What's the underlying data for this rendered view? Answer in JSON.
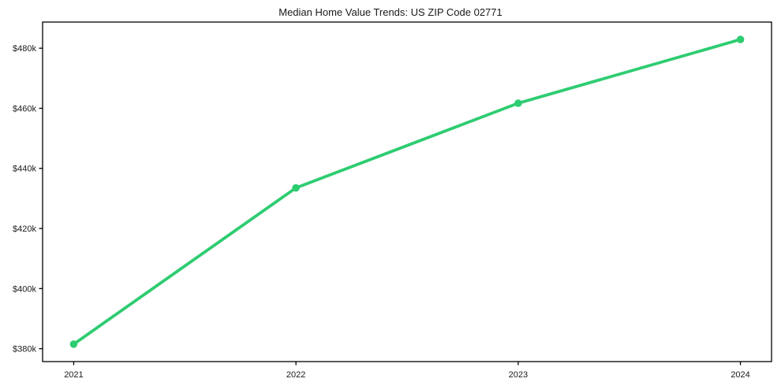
{
  "chart_data": {
    "type": "line",
    "title": "Median Home Value Trends: US ZIP Code 02771",
    "xlabel": "",
    "ylabel": "",
    "x": [
      2021,
      2022,
      2023,
      2024
    ],
    "values": [
      381.5,
      433.5,
      461.7,
      482.9
    ],
    "values_unit": "USD thousands (read from $...k tick labels)",
    "x_tick_labels": [
      "2021",
      "2022",
      "2023",
      "2024"
    ],
    "y_tick_values": [
      380,
      400,
      420,
      440,
      460,
      480
    ],
    "y_tick_labels": [
      "$380k",
      "$400k",
      "$420k",
      "$440k",
      "$460k",
      "$480k"
    ],
    "xlim": [
      2020.86,
      2024.14
    ],
    "ylim": [
      375.7,
      488.7
    ],
    "grid": false,
    "legend": "none",
    "line_color": "#2ecc71",
    "marker": "circle",
    "axis_color": "#000000",
    "text_color": "#1a1a1a"
  }
}
